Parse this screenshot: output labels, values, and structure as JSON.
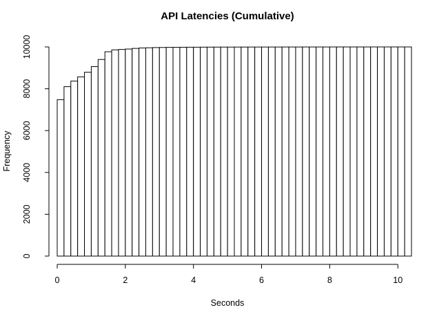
{
  "chart_data": {
    "type": "bar",
    "title": "API Latencies (Cumulative)",
    "xlabel": "Seconds",
    "ylabel": "Frequency",
    "xlim": [
      0,
      10.4
    ],
    "ylim": [
      0,
      10000
    ],
    "xticks": [
      0,
      2,
      4,
      6,
      8,
      10
    ],
    "yticks": [
      0,
      2000,
      4000,
      6000,
      8000,
      10000
    ],
    "bin_width": 0.2,
    "x": [
      0,
      0.2,
      0.4,
      0.6,
      0.8,
      1.0,
      1.2,
      1.4,
      1.6,
      1.8,
      2.0,
      2.2,
      2.4,
      2.6,
      2.8,
      3.0,
      3.2,
      3.4,
      3.6,
      3.8,
      4.0,
      4.2,
      4.4,
      4.6,
      4.8,
      5.0,
      5.2,
      5.4,
      5.6,
      5.8,
      6.0,
      6.2,
      6.4,
      6.6,
      6.8,
      7.0,
      7.2,
      7.4,
      7.6,
      7.8,
      8.0,
      8.2,
      8.4,
      8.6,
      8.8,
      9.0,
      9.2,
      9.4,
      9.6,
      9.8,
      10.0,
      10.2
    ],
    "values": [
      7480,
      8100,
      8370,
      8570,
      8790,
      9060,
      9400,
      9770,
      9860,
      9880,
      9900,
      9930,
      9950,
      9960,
      9970,
      9975,
      9980,
      9982,
      9985,
      9987,
      9988,
      9990,
      9991,
      9992,
      9993,
      9993,
      9994,
      9994,
      9995,
      9995,
      9996,
      9996,
      9996,
      9997,
      9997,
      9997,
      9998,
      9998,
      9998,
      9998,
      9999,
      9999,
      9999,
      9999,
      9999,
      9999,
      10000,
      10000,
      10000,
      10000,
      10000,
      10000
    ],
    "grid": false,
    "legend": "none"
  }
}
